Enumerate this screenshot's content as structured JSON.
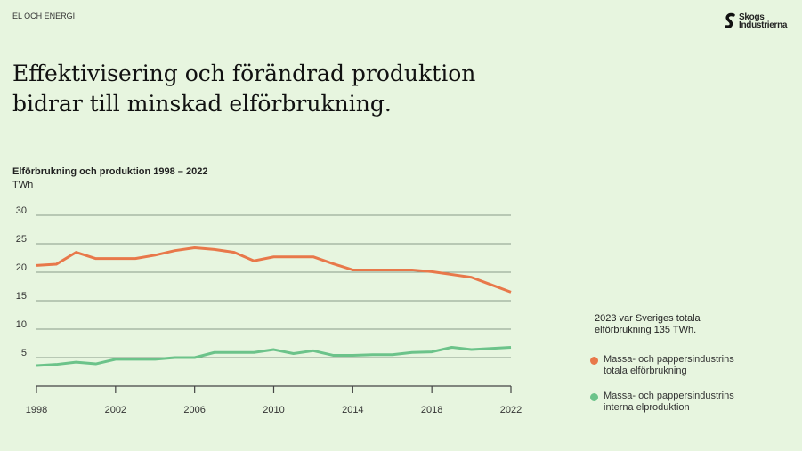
{
  "header": {
    "section": "EL OCH ENERGI",
    "logo_text": "Skogs Industrierna"
  },
  "title_lines": [
    "Effektivisering och förändrad produktion",
    "bidrar till minskad elförbrukning."
  ],
  "note": [
    "2023 var Sveriges totala",
    "elförbrukning 135 TWh."
  ],
  "chart_data": {
    "type": "line",
    "title": "Elförbrukning och produktion 1998 – 2022",
    "ylabel": "TWh",
    "ylim": [
      0,
      30
    ],
    "yticks": [
      5,
      10,
      15,
      20,
      25,
      30
    ],
    "xticks": [
      1998,
      2002,
      2006,
      2010,
      2014,
      2018,
      2022
    ],
    "xlim": [
      1998,
      2022
    ],
    "grid": true,
    "legend_position": "right",
    "x": [
      1998,
      1999,
      2000,
      2001,
      2002,
      2003,
      2004,
      2005,
      2006,
      2007,
      2008,
      2009,
      2010,
      2011,
      2012,
      2013,
      2014,
      2015,
      2016,
      2017,
      2018,
      2019,
      2020,
      2021,
      2022
    ],
    "series": [
      {
        "name": "Massa- och pappersindustrins totala elförbrukning",
        "name_lines": [
          "Massa- och pappersindustrins",
          "totala elförbrukning"
        ],
        "color": "#e8784a",
        "values": [
          21.2,
          21.4,
          23.5,
          22.4,
          22.4,
          22.4,
          23.0,
          23.8,
          24.3,
          24.0,
          23.5,
          22.0,
          22.7,
          22.7,
          22.7,
          21.5,
          20.4,
          20.4,
          20.4,
          20.4,
          20.1,
          19.6,
          19.1,
          17.8,
          16.5
        ]
      },
      {
        "name": "Massa- och pappersindustrins interna elproduktion",
        "name_lines": [
          "Massa- och pappersindustrins",
          "interna elproduktion"
        ],
        "color": "#6cc38a",
        "values": [
          3.6,
          3.8,
          4.2,
          3.9,
          4.7,
          4.7,
          4.7,
          5.0,
          5.0,
          5.9,
          5.9,
          5.9,
          6.4,
          5.7,
          6.2,
          5.4,
          5.4,
          5.5,
          5.5,
          5.9,
          6.0,
          6.8,
          6.4,
          6.6,
          6.8
        ]
      }
    ]
  }
}
